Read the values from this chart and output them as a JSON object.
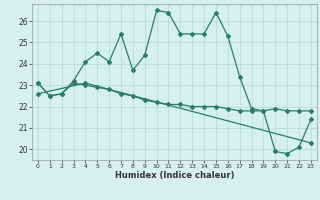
{
  "line1_x": [
    0,
    1,
    2,
    3,
    4,
    5,
    6,
    7,
    8,
    9,
    10,
    11,
    12,
    13,
    14,
    15,
    16,
    17,
    18,
    19,
    20,
    21,
    22,
    23
  ],
  "line1_y": [
    23.1,
    22.5,
    22.6,
    23.2,
    24.1,
    24.5,
    24.1,
    25.4,
    23.7,
    24.4,
    26.5,
    26.4,
    25.4,
    25.4,
    25.4,
    26.4,
    25.3,
    23.4,
    21.9,
    21.8,
    19.9,
    19.8,
    20.1,
    21.4
  ],
  "line2_x": [
    0,
    1,
    2,
    3,
    4,
    5,
    6,
    7,
    8,
    9,
    10,
    11,
    12,
    13,
    14,
    15,
    16,
    17,
    18,
    19,
    20,
    21,
    22,
    23
  ],
  "line2_y": [
    23.1,
    22.5,
    22.6,
    23.1,
    23.0,
    22.9,
    22.8,
    22.6,
    22.5,
    22.3,
    22.2,
    22.1,
    22.1,
    22.0,
    22.0,
    22.0,
    21.9,
    21.8,
    21.8,
    21.8,
    21.9,
    21.8,
    21.8,
    21.8
  ],
  "line3_x": [
    0,
    4,
    23
  ],
  "line3_y": [
    22.6,
    23.1,
    20.3
  ],
  "color": "#2a7d6b",
  "bg_color": "#d6f0ec",
  "grid_color": "#b0d8d4",
  "xlabel": "Humidex (Indice chaleur)",
  "ylim": [
    19.5,
    26.8
  ],
  "xlim": [
    -0.5,
    23.5
  ],
  "yticks": [
    20,
    21,
    22,
    23,
    24,
    25,
    26
  ],
  "xticks": [
    0,
    1,
    2,
    3,
    4,
    5,
    6,
    7,
    8,
    9,
    10,
    11,
    12,
    13,
    14,
    15,
    16,
    17,
    18,
    19,
    20,
    21,
    22,
    23
  ],
  "xtick_labels": [
    "0",
    "1",
    "2",
    "3",
    "4",
    "5",
    "6",
    "7",
    "8",
    "9",
    "10",
    "11",
    "12",
    "13",
    "14",
    "15",
    "16",
    "17",
    "18",
    "19",
    "20",
    "21",
    "22",
    "23"
  ]
}
